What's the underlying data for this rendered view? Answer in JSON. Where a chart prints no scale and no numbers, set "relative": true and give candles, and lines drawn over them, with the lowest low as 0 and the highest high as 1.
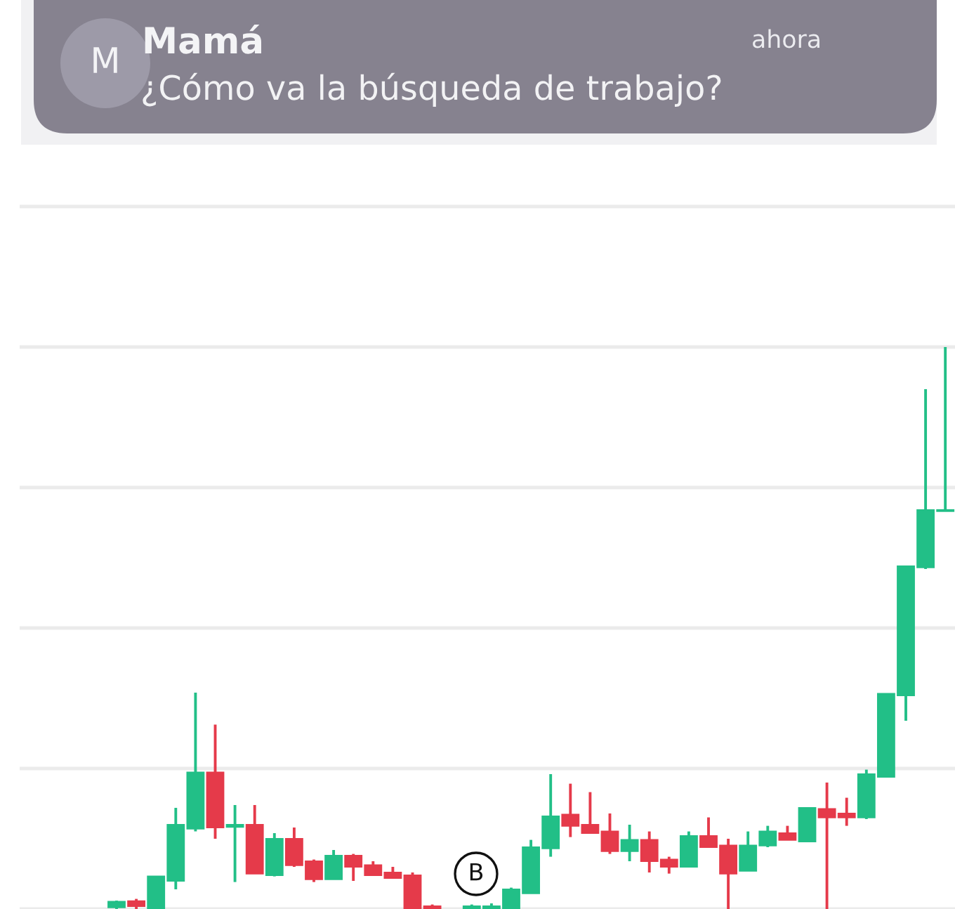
{
  "chart_data": {
    "type": "candlestick",
    "title": "Mamá",
    "subtitle": "¿Cómo va la búsqueda de trabajo?",
    "annotations": [
      "M",
      "ahora",
      "B"
    ],
    "relative": true,
    "grid": "y",
    "categories": [
      null,
      null,
      null,
      null,
      null,
      null,
      null,
      null,
      null,
      null,
      null,
      null,
      null,
      null,
      null,
      null,
      null,
      null,
      null,
      null,
      null,
      null,
      null,
      null,
      null,
      null,
      null,
      null,
      null,
      null,
      null,
      null,
      null,
      null,
      null,
      null,
      null,
      null,
      null,
      null,
      null,
      null,
      null
    ],
    "ohlc": [
      [
        0.003,
        0.015,
        0,
        0.013
      ],
      [
        0.014,
        0.018,
        0,
        0.005
      ],
      [
        0,
        0.058,
        0,
        0.058
      ],
      [
        0.05,
        0.18,
        0.035,
        0.15
      ],
      [
        0.143,
        0.385,
        0.138,
        0.243
      ],
      [
        0.243,
        0.328,
        0.125,
        0.145
      ],
      [
        0.146,
        0.185,
        0.048,
        0.15
      ],
      [
        0.15,
        0.185,
        0.063,
        0.063
      ],
      [
        0.06,
        0.135,
        0.058,
        0.125
      ],
      [
        0.125,
        0.145,
        0.075,
        0.078
      ],
      [
        0.085,
        0.088,
        0.048,
        0.053
      ],
      [
        0.053,
        0.105,
        0.053,
        0.095
      ],
      [
        0.095,
        0.098,
        0.05,
        0.075
      ],
      [
        0.078,
        0.085,
        0.06,
        0.06
      ],
      [
        0.065,
        0.075,
        0.055,
        0.055
      ],
      [
        0.06,
        0.065,
        0,
        0
      ],
      [
        0.005,
        0.008,
        0,
        0
      ],
      null,
      [
        0,
        0.008,
        0,
        0.005
      ],
      [
        0,
        0.01,
        0,
        0.005
      ],
      [
        0,
        0.038,
        0,
        0.035
      ],
      [
        0.028,
        0.123,
        0.028,
        0.11
      ],
      [
        0.108,
        0.24,
        0.093,
        0.165
      ],
      [
        0.168,
        0.223,
        0.128,
        0.148
      ],
      [
        0.15,
        0.208,
        0.135,
        0.135
      ],
      [
        0.138,
        0.17,
        0.098,
        0.103
      ],
      [
        0.103,
        0.15,
        0.085,
        0.123
      ],
      [
        0.123,
        0.138,
        0.065,
        0.085
      ],
      [
        0.088,
        0.093,
        0.063,
        0.075
      ],
      [
        0.075,
        0.138,
        0.075,
        0.13
      ],
      [
        0.13,
        0.163,
        0.11,
        0.11
      ],
      [
        0.113,
        0.125,
        0,
        0.063
      ],
      [
        0.068,
        0.138,
        0.068,
        0.113
      ],
      [
        0.113,
        0.148,
        0.11,
        0.138
      ],
      [
        0.135,
        0.148,
        0.123,
        0.123
      ],
      [
        0.12,
        0.18,
        0.12,
        0.18
      ],
      [
        0.178,
        0.225,
        0,
        0.163
      ],
      [
        0.17,
        0.198,
        0.148,
        0.163
      ],
      [
        0.163,
        0.248,
        0.16,
        0.24
      ],
      [
        0.235,
        0.383,
        0.235,
        0.383
      ],
      [
        0.38,
        0.61,
        0.335,
        0.61
      ],
      [
        0.608,
        0.925,
        0.605,
        0.71
      ],
      [
        0.708,
        1,
        0.708,
        0.71
      ]
    ],
    "colors": [
      "#22bf87",
      "#e53a4a",
      "#22bf87",
      "#22bf87",
      "#22bf87",
      "#e53a4a",
      "#22bf87",
      "#e53a4a",
      "#22bf87",
      "#e53a4a",
      "#e53a4a",
      "#22bf87",
      "#e53a4a",
      "#e53a4a",
      "#e53a4a",
      "#e53a4a",
      "#e53a4a",
      null,
      "#22bf87",
      "#22bf87",
      "#22bf87",
      "#22bf87",
      "#22bf87",
      "#e53a4a",
      "#e53a4a",
      "#e53a4a",
      "#22bf87",
      "#e53a4a",
      "#e53a4a",
      "#22bf87",
      "#e53a4a",
      "#e53a4a",
      "#22bf87",
      "#22bf87",
      "#e53a4a",
      "#22bf87",
      "#e53a4a",
      "#e53a4a",
      "#22bf87",
      "#22bf87",
      "#22bf87",
      "#22bf87",
      "#22bf87"
    ]
  }
}
